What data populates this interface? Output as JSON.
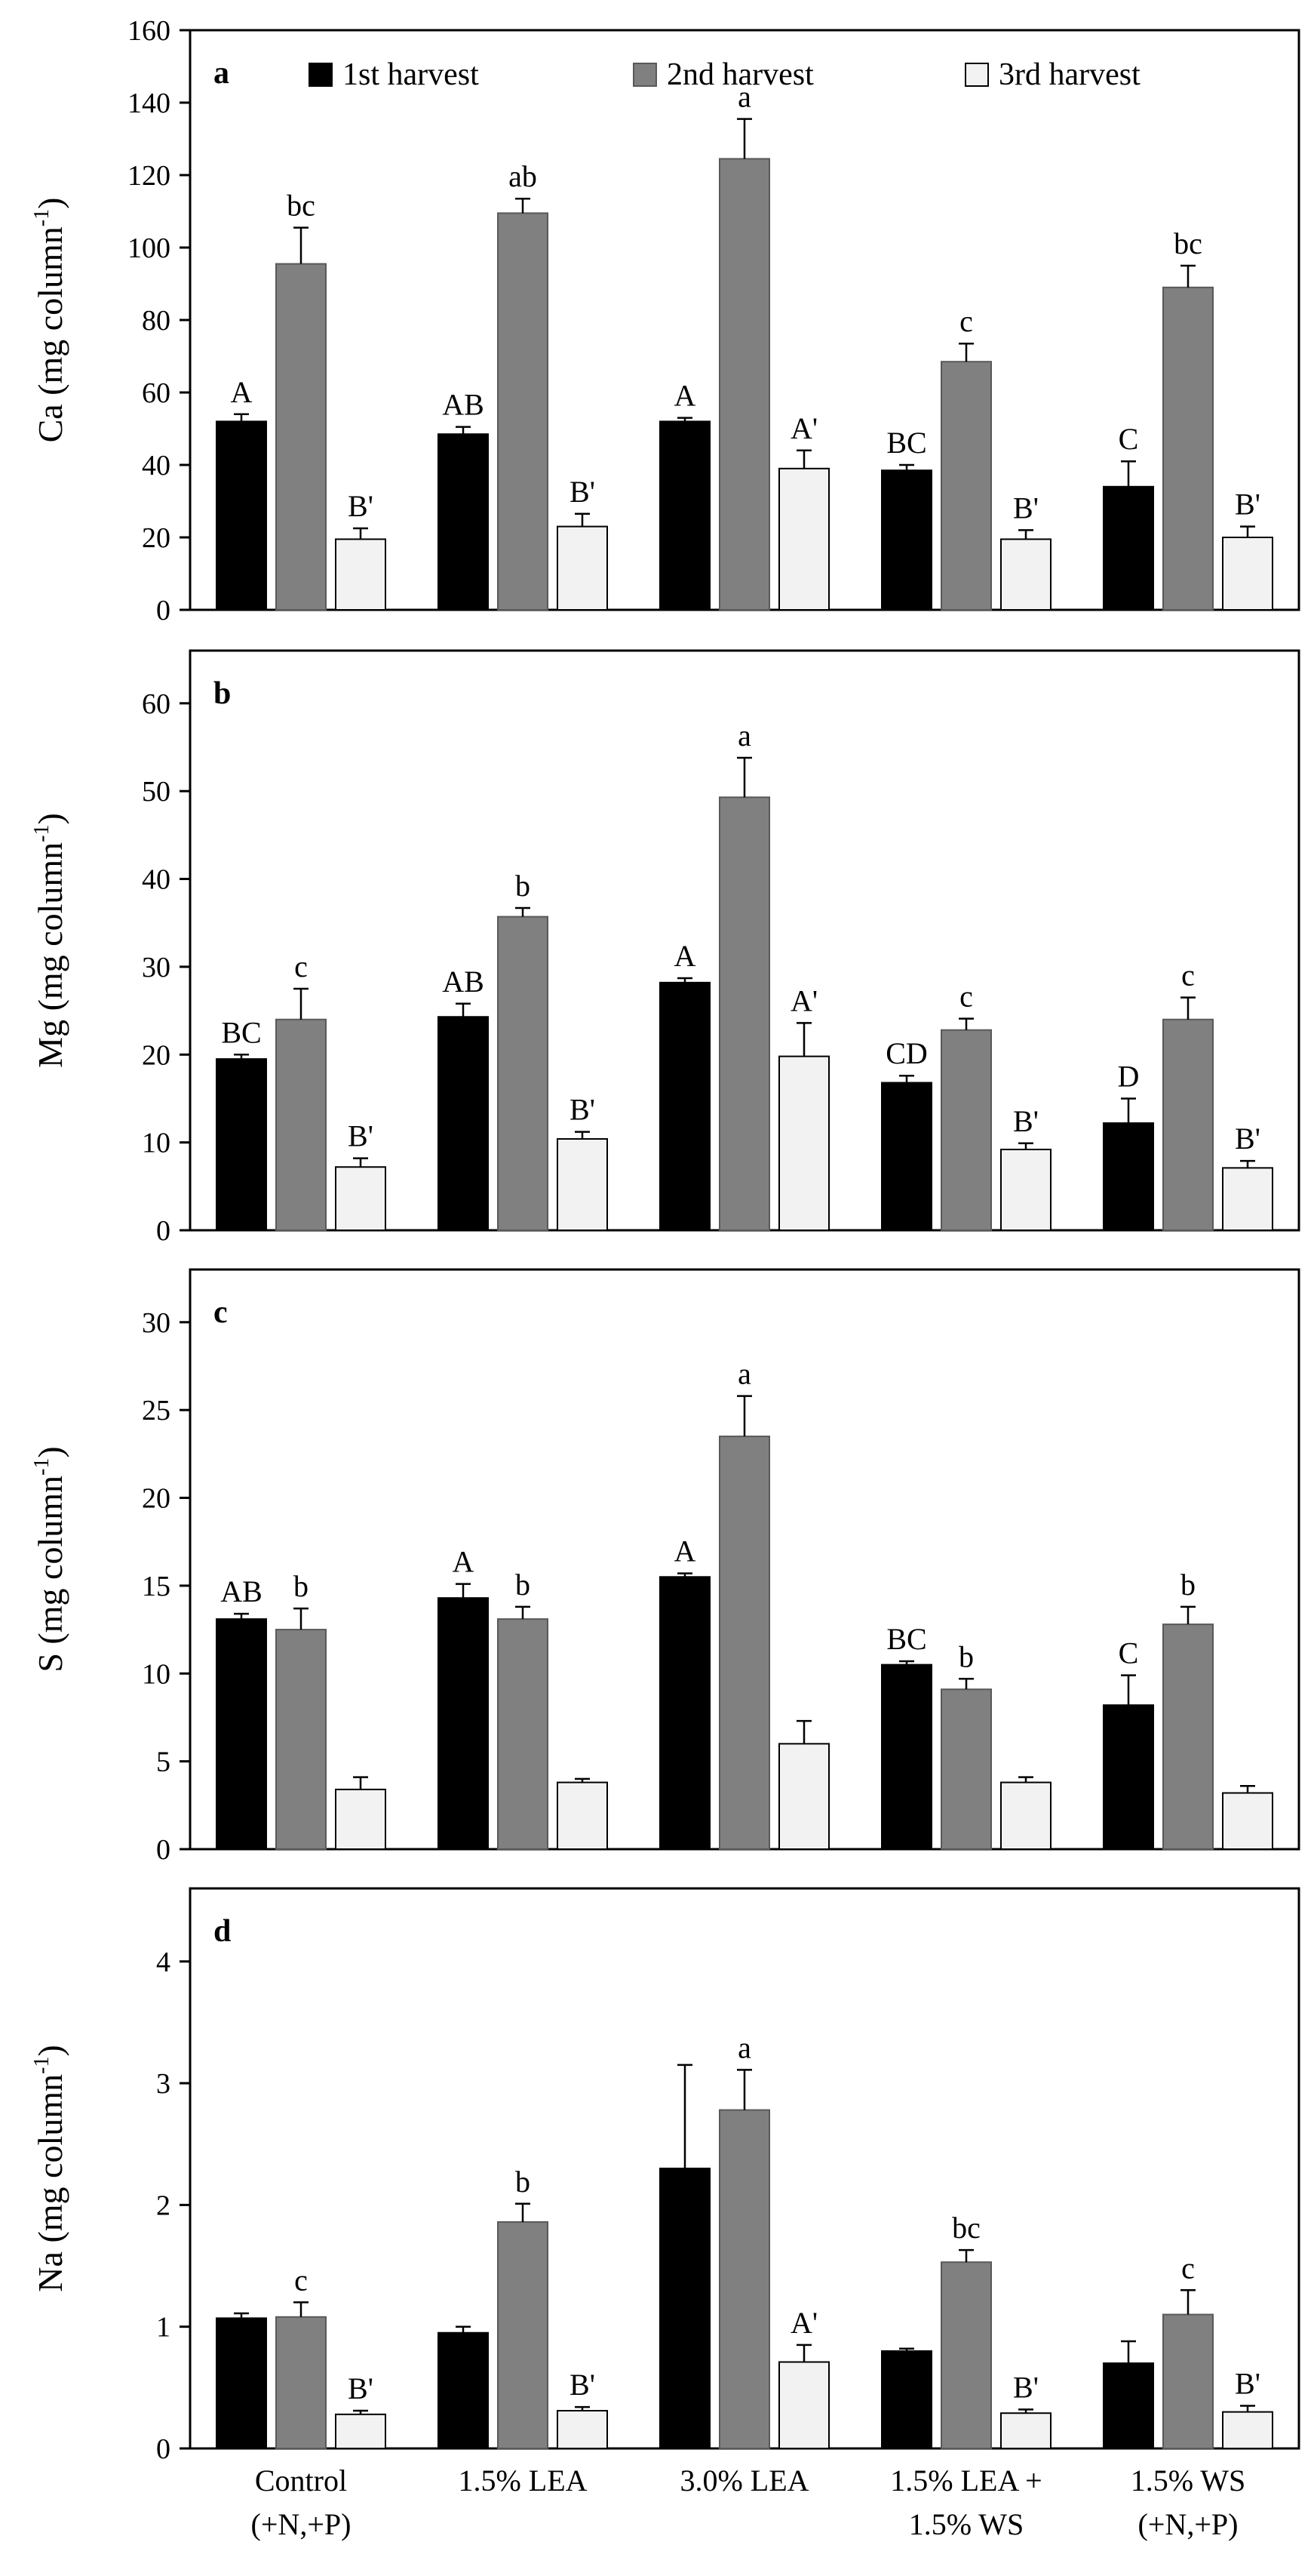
{
  "legend": [
    {
      "name": "1st harvest",
      "color": "#000000"
    },
    {
      "name": "2nd harvest",
      "color": "#808080"
    },
    {
      "name": "3rd harvest",
      "color": "#f2f2f2"
    }
  ],
  "categories": [
    [
      "Control",
      "(+N,+P)"
    ],
    [
      "1.5% LEA"
    ],
    [
      "3.0% LEA"
    ],
    [
      "1.5% LEA +",
      "1.5% WS"
    ],
    [
      "1.5% WS",
      "(+N,+P)"
    ]
  ],
  "chart_data": [
    {
      "type": "bar",
      "panel": "a",
      "ylabel": "Ca (mg column",
      "ylabel_sup": "-1",
      "ylim": [
        0,
        160
      ],
      "yticks": [
        0,
        20,
        40,
        60,
        80,
        100,
        120,
        140,
        160
      ],
      "legend_shown": true,
      "series": [
        {
          "name": "1st harvest",
          "values": [
            52,
            48.5,
            52,
            38.5,
            34
          ],
          "errors": [
            2,
            2,
            1,
            1.5,
            7
          ],
          "letters": [
            "A",
            "AB",
            "A",
            "BC",
            "C"
          ]
        },
        {
          "name": "2nd harvest",
          "values": [
            95.5,
            109.5,
            124.5,
            68.5,
            89
          ],
          "errors": [
            10,
            4,
            11,
            5,
            6
          ],
          "letters": [
            "bc",
            "ab",
            "a",
            "c",
            "bc"
          ]
        },
        {
          "name": "3rd harvest",
          "values": [
            19.5,
            23,
            39,
            19.5,
            20
          ],
          "errors": [
            3,
            3.5,
            5,
            2.5,
            3
          ],
          "letters": [
            "B'",
            "B'",
            "A'",
            "B'",
            "B'"
          ]
        }
      ]
    },
    {
      "type": "bar",
      "panel": "b",
      "ylabel": "Mg (mg column",
      "ylabel_sup": "-1",
      "ylim": [
        0,
        66
      ],
      "yticks": [
        0,
        10,
        20,
        30,
        40,
        50,
        60
      ],
      "legend_shown": false,
      "series": [
        {
          "name": "1st harvest",
          "values": [
            19.5,
            24.3,
            28.2,
            16.8,
            12.2
          ],
          "errors": [
            0.5,
            1.5,
            0.5,
            0.8,
            2.8
          ],
          "letters": [
            "BC",
            "AB",
            "A",
            "CD",
            "D"
          ]
        },
        {
          "name": "2nd harvest",
          "values": [
            24,
            35.7,
            49.3,
            22.8,
            24
          ],
          "errors": [
            3.5,
            1,
            4.5,
            1.3,
            2.5
          ],
          "letters": [
            "c",
            "b",
            "a",
            "c",
            "c"
          ]
        },
        {
          "name": "3rd harvest",
          "values": [
            7.2,
            10.4,
            19.8,
            9.2,
            7.1
          ],
          "errors": [
            1,
            0.8,
            3.8,
            0.7,
            0.8
          ],
          "letters": [
            "B'",
            "B'",
            "A'",
            "B'",
            "B'"
          ]
        }
      ]
    },
    {
      "type": "bar",
      "panel": "c",
      "ylabel": "S (mg column",
      "ylabel_sup": "-1",
      "ylim": [
        0,
        33
      ],
      "yticks": [
        0,
        5,
        10,
        15,
        20,
        25,
        30
      ],
      "legend_shown": false,
      "series": [
        {
          "name": "1st harvest",
          "values": [
            13.1,
            14.3,
            15.5,
            10.5,
            8.2
          ],
          "errors": [
            0.3,
            0.8,
            0.2,
            0.2,
            1.7
          ],
          "letters": [
            "AB",
            "A",
            "A",
            "BC",
            "C"
          ]
        },
        {
          "name": "2nd harvest",
          "values": [
            12.5,
            13.1,
            23.5,
            9.1,
            12.8
          ],
          "errors": [
            1.2,
            0.7,
            2.3,
            0.6,
            1
          ],
          "letters": [
            "b",
            "b",
            "a",
            "b",
            "b"
          ]
        },
        {
          "name": "3rd harvest",
          "values": [
            3.4,
            3.8,
            6,
            3.8,
            3.2
          ],
          "errors": [
            0.7,
            0.2,
            1.3,
            0.3,
            0.4
          ],
          "letters": [
            "",
            "",
            "",
            "",
            ""
          ]
        }
      ]
    },
    {
      "type": "bar",
      "panel": "d",
      "ylabel": "Na (mg column",
      "ylabel_sup": "-1",
      "ylim": [
        0,
        4.6
      ],
      "yticks": [
        0,
        1,
        2,
        3,
        4
      ],
      "legend_shown": false,
      "series": [
        {
          "name": "1st harvest",
          "values": [
            1.07,
            0.95,
            2.3,
            0.8,
            0.7
          ],
          "errors": [
            0.04,
            0.05,
            0.85,
            0.02,
            0.18
          ],
          "letters": [
            "",
            "",
            "",
            "",
            ""
          ]
        },
        {
          "name": "2nd harvest",
          "values": [
            1.08,
            1.86,
            2.78,
            1.53,
            1.1
          ],
          "errors": [
            0.12,
            0.15,
            0.33,
            0.1,
            0.2
          ],
          "letters": [
            "c",
            "b",
            "a",
            "bc",
            "c"
          ]
        },
        {
          "name": "3rd harvest",
          "values": [
            0.28,
            0.31,
            0.71,
            0.29,
            0.3
          ],
          "errors": [
            0.03,
            0.03,
            0.14,
            0.03,
            0.05
          ],
          "letters": [
            "B'",
            "B'",
            "A'",
            "B'",
            "B'"
          ]
        }
      ]
    }
  ]
}
